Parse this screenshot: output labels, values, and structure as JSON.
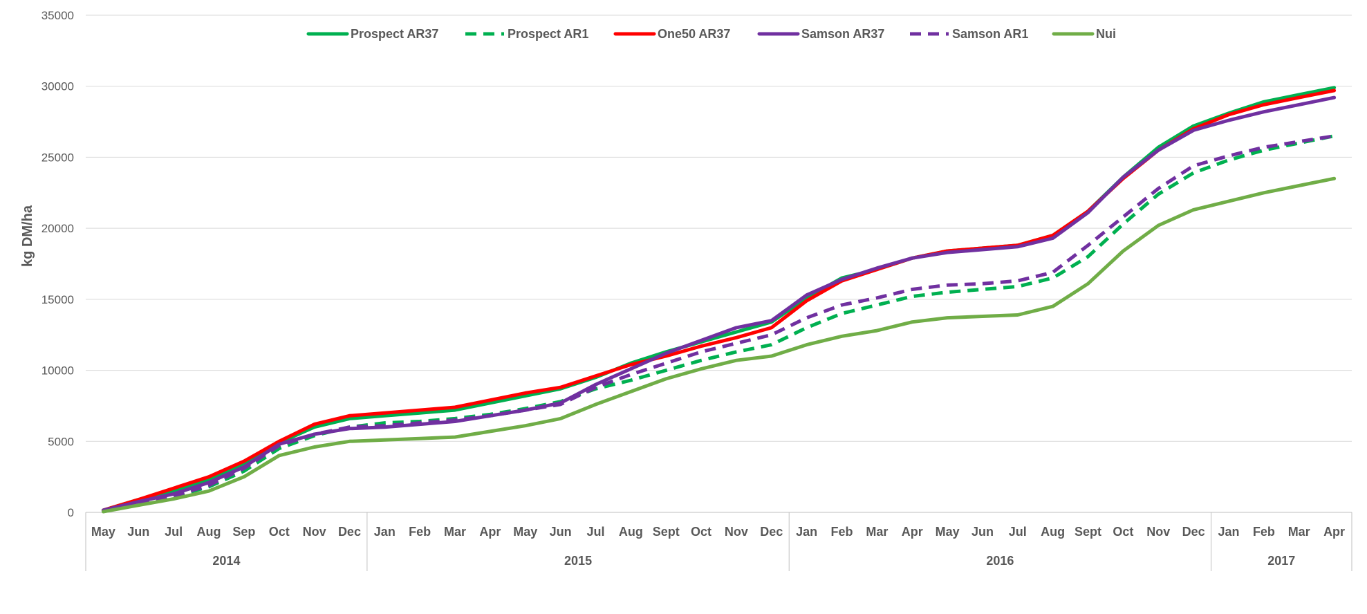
{
  "chart_data": {
    "type": "line",
    "ylabel": "kg DM/ha",
    "ylim": [
      0,
      35000
    ],
    "y_ticks": [
      "0",
      "5000",
      "10000",
      "15000",
      "20000",
      "25000",
      "30000",
      "35000"
    ],
    "grid": true,
    "legend_position": "top",
    "categories": [
      "May",
      "Jun",
      "Jul",
      "Aug",
      "Sep",
      "Oct",
      "Nov",
      "Dec",
      "Jan",
      "Feb",
      "Mar",
      "Apr",
      "May",
      "Jun",
      "Jul",
      "Aug",
      "Sept",
      "Oct",
      "Nov",
      "Dec",
      "Jan",
      "Feb",
      "Mar",
      "Apr",
      "May",
      "Jun",
      "Jul",
      "Aug",
      "Sept",
      "Oct",
      "Nov",
      "Dec",
      "Jan",
      "Feb",
      "Mar",
      "Apr"
    ],
    "year_groups": [
      {
        "label": "2014",
        "count": 8
      },
      {
        "label": "2015",
        "count": 12
      },
      {
        "label": "2016",
        "count": 12
      },
      {
        "label": "2017",
        "count": 4
      }
    ],
    "series": [
      {
        "name": "Prospect AR37",
        "color": "#00b050",
        "dashed": false,
        "values": [
          150,
          900,
          1500,
          2300,
          3400,
          4900,
          6000,
          6600,
          6800,
          7000,
          7200,
          7700,
          8200,
          8700,
          9500,
          10500,
          11300,
          12000,
          12700,
          13400,
          15100,
          16500,
          17100,
          17900,
          18400,
          18600,
          18800,
          19500,
          21200,
          23600,
          25700,
          27200,
          28100,
          28900,
          29400,
          29900
        ]
      },
      {
        "name": "Prospect AR1",
        "color": "#00b050",
        "dashed": true,
        "values": [
          100,
          600,
          1100,
          1800,
          2900,
          4500,
          5400,
          6000,
          6300,
          6400,
          6600,
          6900,
          7300,
          7800,
          8700,
          9300,
          10000,
          10700,
          11300,
          11800,
          13000,
          14000,
          14600,
          15200,
          15500,
          15700,
          15900,
          16500,
          18000,
          20300,
          22400,
          23900,
          24800,
          25500,
          26000,
          26500
        ]
      },
      {
        "name": "One50 AR37",
        "color": "#ff0000",
        "dashed": false,
        "values": [
          150,
          900,
          1700,
          2500,
          3600,
          5000,
          6200,
          6800,
          7000,
          7200,
          7400,
          7900,
          8400,
          8800,
          9600,
          10400,
          11000,
          11700,
          12300,
          13000,
          14900,
          16300,
          17100,
          17900,
          18400,
          18600,
          18800,
          19500,
          21200,
          23500,
          25500,
          27000,
          28000,
          28700,
          29200,
          29700
        ]
      },
      {
        "name": "Samson AR37",
        "color": "#7030a0",
        "dashed": false,
        "values": [
          150,
          750,
          1300,
          2100,
          3200,
          4800,
          5500,
          5900,
          6000,
          6200,
          6400,
          6800,
          7200,
          7700,
          9000,
          10100,
          11200,
          12100,
          13000,
          13500,
          15300,
          16400,
          17200,
          17900,
          18300,
          18500,
          18700,
          19300,
          21100,
          23600,
          25500,
          26900,
          27600,
          28200,
          28700,
          29200
        ]
      },
      {
        "name": "Samson AR1",
        "color": "#7030a0",
        "dashed": true,
        "values": [
          100,
          650,
          1150,
          1900,
          3100,
          4700,
          5500,
          6000,
          6100,
          6300,
          6500,
          6800,
          7200,
          7600,
          8800,
          9700,
          10500,
          11300,
          11900,
          12500,
          13700,
          14600,
          15100,
          15700,
          16000,
          16100,
          16300,
          16900,
          18800,
          20800,
          22800,
          24400,
          25100,
          25700,
          26100,
          26500
        ]
      },
      {
        "name": "Nui",
        "color": "#70ad47",
        "dashed": false,
        "values": [
          50,
          500,
          950,
          1500,
          2500,
          4000,
          4600,
          5000,
          5100,
          5200,
          5300,
          5700,
          6100,
          6600,
          7600,
          8500,
          9400,
          10100,
          10700,
          11000,
          11800,
          12400,
          12800,
          13400,
          13700,
          13800,
          13900,
          14500,
          16100,
          18400,
          20200,
          21300,
          21900,
          22500,
          23000,
          23500
        ]
      }
    ]
  }
}
